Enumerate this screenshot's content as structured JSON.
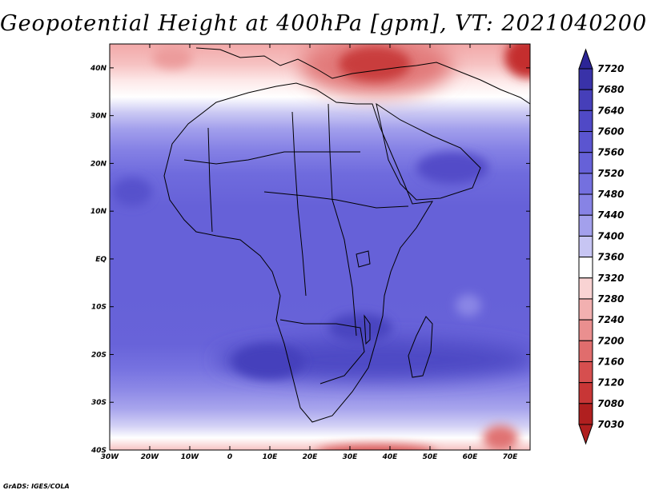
{
  "title": "Geopotential Height at 400hPa [gpm], VT: 2021040200",
  "credit": "GrADS: IGES/COLA",
  "map": {
    "lon_range": [
      -30,
      75
    ],
    "lat_range": [
      -40,
      45
    ],
    "lon_ticks": [
      {
        "value": -30,
        "label": "30W"
      },
      {
        "value": -20,
        "label": "20W"
      },
      {
        "value": -10,
        "label": "10W"
      },
      {
        "value": 0,
        "label": "0"
      },
      {
        "value": 10,
        "label": "10E"
      },
      {
        "value": 20,
        "label": "20E"
      },
      {
        "value": 30,
        "label": "30E"
      },
      {
        "value": 40,
        "label": "40E"
      },
      {
        "value": 50,
        "label": "50E"
      },
      {
        "value": 60,
        "label": "60E"
      },
      {
        "value": 70,
        "label": "70E"
      }
    ],
    "lat_ticks": [
      {
        "value": 40,
        "label": "40N"
      },
      {
        "value": 30,
        "label": "30N"
      },
      {
        "value": 20,
        "label": "20N"
      },
      {
        "value": 10,
        "label": "10N"
      },
      {
        "value": 0,
        "label": "EQ"
      },
      {
        "value": -10,
        "label": "10S"
      },
      {
        "value": -20,
        "label": "20S"
      },
      {
        "value": -30,
        "label": "30S"
      },
      {
        "value": -40,
        "label": "40S"
      }
    ]
  },
  "colorbar": {
    "levels": [
      "7720",
      "7680",
      "7640",
      "7600",
      "7560",
      "7520",
      "7480",
      "7440",
      "7400",
      "7360",
      "7320",
      "7280",
      "7240",
      "7200",
      "7160",
      "7120",
      "7080",
      "7030"
    ],
    "colors": [
      "#2c2596",
      "#3932a8",
      "#463fb9",
      "#5049c6",
      "#5b55d0",
      "#6661d8",
      "#7470df",
      "#8783e5",
      "#a3a0ec",
      "#c7c5f3",
      "#ffffff",
      "#f9d3d3",
      "#f2b0b0",
      "#ea8f8f",
      "#e06d6d",
      "#d64f4f",
      "#c83636",
      "#b01f1f"
    ]
  }
}
